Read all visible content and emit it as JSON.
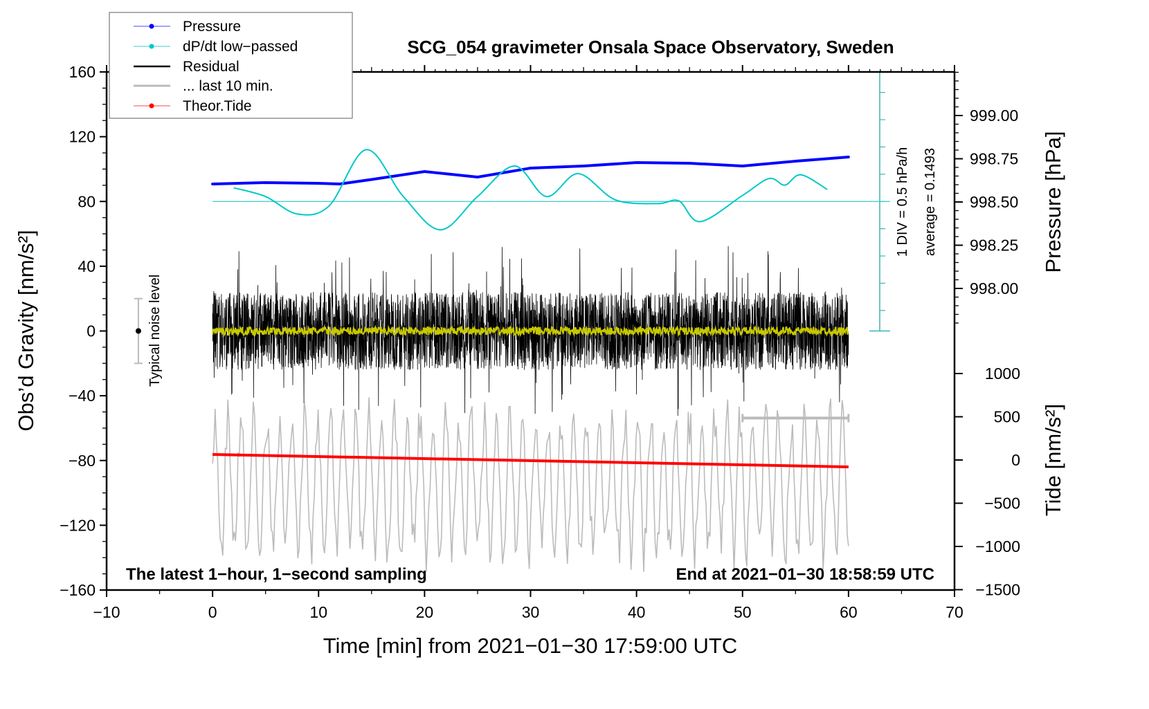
{
  "chart_data": {
    "type": "line",
    "title": "SCG_054 gravimeter Onsala Space Observatory, Sweden",
    "xlabel": "Time [min] from 2021−01−30 17:59:00 UTC",
    "ylabel": "Obs’d Gravity [nm/s²]",
    "ylabel_right_top": "Pressure [hPa]",
    "ylabel_right_bottom": "Tide [nm/s²]",
    "xlim": [
      -10,
      70
    ],
    "ylim": [
      -160,
      160
    ],
    "pressure_lim": [
      997.76,
      999.25
    ],
    "tide_lim": [
      -1500,
      1500
    ],
    "x_ticks": [
      "−10",
      "0",
      "10",
      "20",
      "30",
      "40",
      "50",
      "60",
      "70"
    ],
    "y_ticks": [
      "160",
      "120",
      "80",
      "40",
      "0",
      "−40",
      "−80",
      "−120",
      "−160"
    ],
    "pressure_ticks": [
      "999.00",
      "998.75",
      "998.50",
      "998.25",
      "998.00"
    ],
    "tide_ticks": [
      "1000",
      "500",
      "0",
      "−500",
      "−1000",
      "−1500"
    ],
    "legend": {
      "placement": "top-left",
      "entries": [
        "Pressure",
        "dP/dt low−passed",
        "Residual",
        "... last 10 min.",
        "Theor.Tide"
      ]
    },
    "annotations": {
      "left_note": "The latest 1−hour, 1−second sampling",
      "right_note": "End at 2021−01−30 18:58:59 UTC",
      "noise_label": "Typical noise level",
      "div_label": "1 DIV = 0.5 hPa/h",
      "average_label": "average = 0.1493"
    },
    "series": [
      {
        "name": "Pressure",
        "unit": "hPa",
        "color": "#0000ff",
        "x": [
          0,
          5,
          10,
          12,
          15,
          20,
          25,
          30,
          35,
          40,
          45,
          50,
          55,
          60
        ],
        "values": [
          998.604,
          998.612,
          998.608,
          998.604,
          998.63,
          998.676,
          998.644,
          998.696,
          998.708,
          998.728,
          998.724,
          998.708,
          998.736,
          998.76
        ]
      },
      {
        "name": "dP/dt low-passed",
        "unit": "hPa/h",
        "color": "#00c8c8",
        "x": [
          2,
          5,
          8,
          11,
          14.5,
          18,
          21.5,
          25,
          28.5,
          31.5,
          34.5,
          38,
          42,
          44,
          46,
          50,
          52.5,
          54,
          55.5,
          58
        ],
        "values": [
          0.25,
          0.09,
          -0.23,
          -0.08,
          0.95,
          0.09,
          -0.52,
          0.09,
          0.65,
          0.09,
          0.51,
          0.03,
          -0.04,
          0.01,
          -0.37,
          0.11,
          0.42,
          0.3,
          0.49,
          0.22
        ]
      },
      {
        "name": "Residual",
        "unit": "nm/s2",
        "color": "#000000",
        "range": [
          -60,
          68
        ],
        "x_range": [
          0,
          60
        ]
      },
      {
        "name": "Residual filtered",
        "unit": "nm/s2",
        "color": "#c8c800",
        "range": [
          -3,
          3
        ],
        "x_range": [
          0,
          60
        ]
      },
      {
        "name": "... last 10 min.",
        "unit": "nm/s2",
        "color": "#bbbbbb",
        "range": [
          -140,
          -40
        ],
        "x_range": [
          0,
          60
        ]
      },
      {
        "name": "Theor.Tide",
        "unit": "nm/s2",
        "color": "#ff0000",
        "x": [
          0,
          60
        ],
        "values": [
          64,
          -80
        ]
      }
    ],
    "noise_level": {
      "x": -7,
      "center": 0,
      "half": 20
    },
    "last10_bar": {
      "x": [
        50,
        60
      ],
      "y": -53.8
    },
    "div_axis": {
      "zero_gravity": 80,
      "hpa_per_div": 0.5
    }
  }
}
